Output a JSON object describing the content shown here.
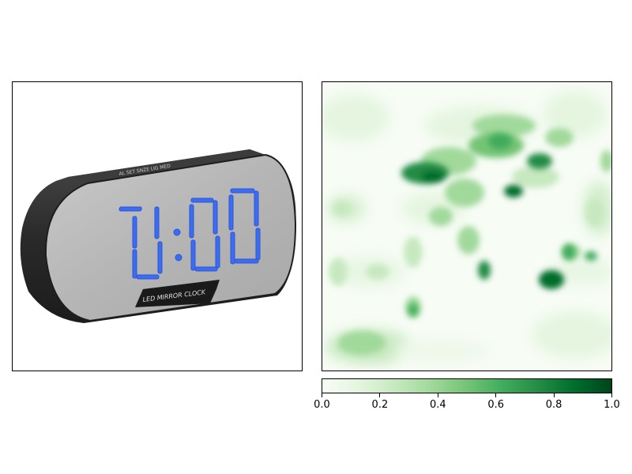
{
  "photo": {
    "clock_display": "0:00",
    "label": "LED MIRROR CLOCK",
    "top_buttons": "AL  SET  SNZE  LIG  MED"
  },
  "colorbar": {
    "colormap": "Greens",
    "ticks": [
      "0.0",
      "0.2",
      "0.4",
      "0.6",
      "0.8",
      "1.0"
    ],
    "range": [
      0.0,
      1.0
    ]
  },
  "colors": {
    "digit_blue": "#3d6cf0",
    "clock_body": "#2e2e2e",
    "mirror_face": "#b9b9b9",
    "heat_max": "#00441b"
  }
}
